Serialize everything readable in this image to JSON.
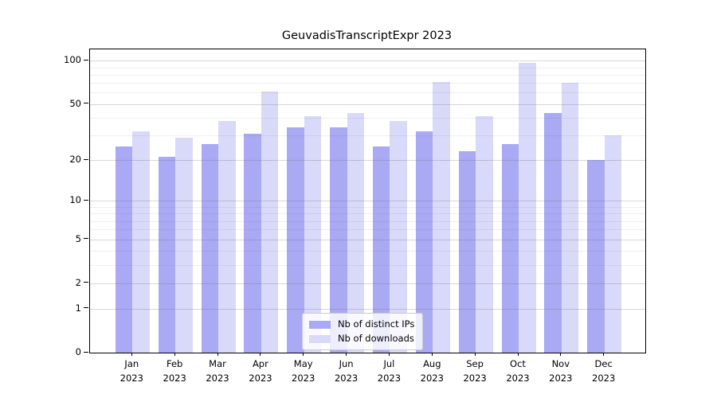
{
  "title": "GeuvadisTranscriptExpr 2023",
  "chart_data": {
    "type": "bar",
    "title": "GeuvadisTranscriptExpr 2023",
    "months": [
      "Jan",
      "Feb",
      "Mar",
      "Apr",
      "May",
      "Jun",
      "Jul",
      "Aug",
      "Sep",
      "Oct",
      "Nov",
      "Dec"
    ],
    "year": "2023",
    "series": [
      {
        "name": "Nb of distinct IPs",
        "color": "#a9a9f4",
        "values": [
          25,
          21,
          26,
          31,
          34,
          34,
          25,
          32,
          23,
          26,
          43,
          20
        ]
      },
      {
        "name": "Nb of downloads",
        "color": "#d9d9f9",
        "values": [
          32,
          29,
          38,
          61,
          41,
          43,
          38,
          71,
          41,
          97,
          70,
          30
        ]
      }
    ],
    "yscale": "log1p",
    "yticks": [
      0,
      1,
      2,
      5,
      10,
      20,
      50,
      100
    ],
    "minor_gridlines": [
      3,
      4,
      6,
      7,
      8,
      9,
      30,
      40,
      60,
      70,
      80,
      90
    ],
    "ylim": [
      0,
      120
    ],
    "grid": true,
    "legend_position": "lower center"
  }
}
